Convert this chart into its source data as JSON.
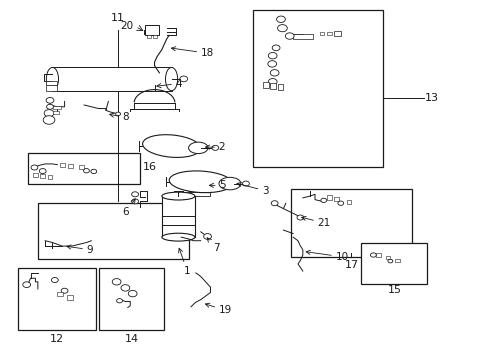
{
  "figsize": [
    4.89,
    3.6
  ],
  "dpi": 100,
  "bg_color": "#ffffff",
  "lc": "#1a1a1a",
  "boxes": {
    "11": [
      0.075,
      0.28,
      0.385,
      0.435
    ],
    "13": [
      0.518,
      0.535,
      0.785,
      0.975
    ],
    "16": [
      0.055,
      0.49,
      0.285,
      0.575
    ],
    "17": [
      0.595,
      0.285,
      0.845,
      0.475
    ],
    "15": [
      0.74,
      0.21,
      0.875,
      0.325
    ],
    "12": [
      0.035,
      0.08,
      0.195,
      0.255
    ],
    "14": [
      0.2,
      0.08,
      0.335,
      0.255
    ]
  },
  "label_positions": {
    "11": [
      0.24,
      0.94,
      "center",
      "bottom"
    ],
    "13": [
      0.87,
      0.73,
      "left",
      "center"
    ],
    "16": [
      0.29,
      0.535,
      "left",
      "center"
    ],
    "17": [
      0.72,
      0.275,
      "center",
      "top"
    ],
    "15": [
      0.81,
      0.205,
      "center",
      "top"
    ],
    "12": [
      0.115,
      0.07,
      "center",
      "top"
    ],
    "14": [
      0.268,
      0.07,
      "center",
      "top"
    ],
    "20": [
      0.285,
      0.935,
      "right",
      "center"
    ],
    "18": [
      0.415,
      0.815,
      "left",
      "center"
    ],
    "4": [
      0.36,
      0.73,
      "left",
      "center"
    ],
    "2": [
      0.445,
      0.565,
      "left",
      "center"
    ],
    "5": [
      0.447,
      0.488,
      "left",
      "center"
    ],
    "3": [
      0.535,
      0.47,
      "left",
      "center"
    ],
    "6": [
      0.295,
      0.405,
      "right",
      "center"
    ],
    "1": [
      0.38,
      0.225,
      "left",
      "center"
    ],
    "7": [
      0.432,
      0.31,
      "left",
      "center"
    ],
    "8": [
      0.242,
      0.52,
      "left",
      "center"
    ],
    "9": [
      0.175,
      0.305,
      "left",
      "center"
    ],
    "10": [
      0.685,
      0.285,
      "left",
      "center"
    ],
    "19": [
      0.445,
      0.135,
      "left",
      "center"
    ],
    "21": [
      0.648,
      0.38,
      "left",
      "center"
    ]
  },
  "font_size": 7.5
}
